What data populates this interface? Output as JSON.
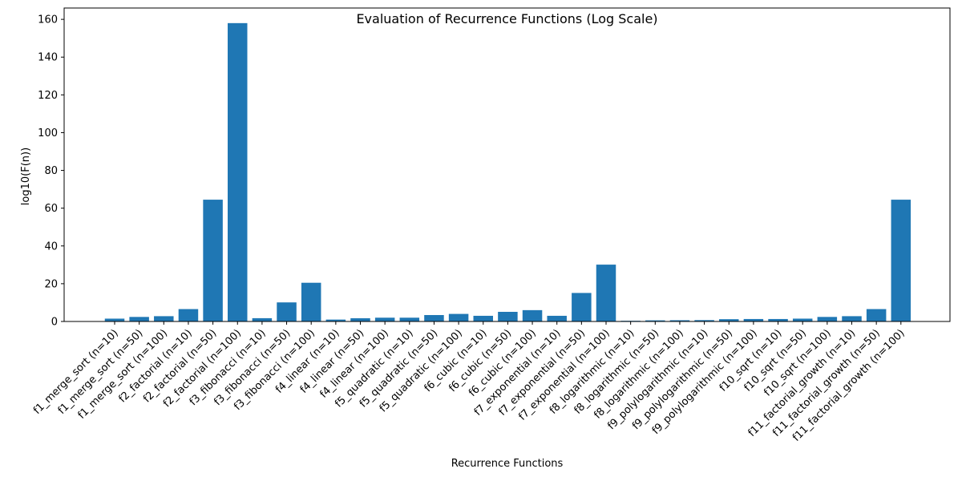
{
  "chart_data": {
    "type": "bar",
    "title": "Evaluation of Recurrence Functions (Log Scale)",
    "xlabel": "Recurrence Functions",
    "ylabel": "log10(F(n))",
    "ylim": [
      0,
      166
    ],
    "yticks": [
      0,
      20,
      40,
      60,
      80,
      100,
      120,
      140,
      160
    ],
    "grid": false,
    "legend": "none",
    "bar_color": "#1f77b4",
    "categories": [
      "f1_merge_sort (n=10)",
      "f1_merge_sort (n=50)",
      "f1_merge_sort (n=100)",
      "f2_factorial (n=10)",
      "f2_factorial (n=50)",
      "f2_factorial (n=100)",
      "f3_fibonacci (n=10)",
      "f3_fibonacci (n=50)",
      "f3_fibonacci (n=100)",
      "f4_linear (n=10)",
      "f4_linear (n=50)",
      "f4_linear (n=100)",
      "f5_quadratic (n=10)",
      "f5_quadratic (n=50)",
      "f5_quadratic (n=100)",
      "f6_cubic (n=10)",
      "f6_cubic (n=50)",
      "f6_cubic (n=100)",
      "f7_exponential (n=10)",
      "f7_exponential (n=50)",
      "f7_exponential (n=100)",
      "f8_logarithmic (n=10)",
      "f8_logarithmic (n=50)",
      "f8_logarithmic (n=100)",
      "f9_polylogarithmic (n=10)",
      "f9_polylogarithmic (n=50)",
      "f9_polylogarithmic (n=100)",
      "f10_sqrt (n=10)",
      "f10_sqrt (n=50)",
      "f10_sqrt (n=100)",
      "f11_factorial_growth (n=10)",
      "f11_factorial_growth (n=50)",
      "f11_factorial_growth (n=100)"
    ],
    "values": [
      1.5,
      2.4,
      2.8,
      6.56,
      64.5,
      158.0,
      1.74,
      10.1,
      20.5,
      1.0,
      1.7,
      2.0,
      2.0,
      3.4,
      4.0,
      3.0,
      5.1,
      6.0,
      3.0,
      15.1,
      30.1,
      0.36,
      0.59,
      0.66,
      0.72,
      1.2,
      1.3,
      1.3,
      1.5,
      2.4,
      2.8,
      6.56,
      64.5
    ]
  }
}
